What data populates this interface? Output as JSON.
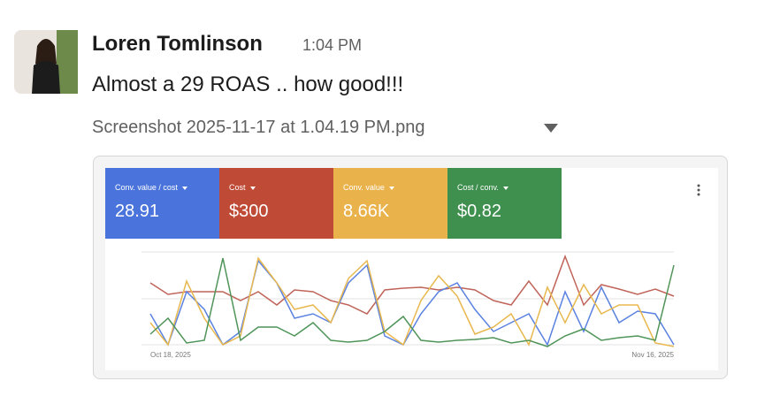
{
  "message": {
    "author": "Loren Tomlinson",
    "time": "1:04 PM",
    "text": "Almost a 29 ROAS .. how good!!!",
    "attachment": {
      "filename": "Screenshot 2025-11-17 at 1.04.19 PM.png",
      "metrics": [
        {
          "label": "Conv. value / cost",
          "value": "28.91"
        },
        {
          "label": "Cost",
          "value": "$300"
        },
        {
          "label": "Conv. value",
          "value": "8.66K"
        },
        {
          "label": "Cost / conv.",
          "value": "$0.82"
        }
      ],
      "date_start": "Oct 18, 2025",
      "date_end": "Nov 16, 2025"
    }
  }
}
